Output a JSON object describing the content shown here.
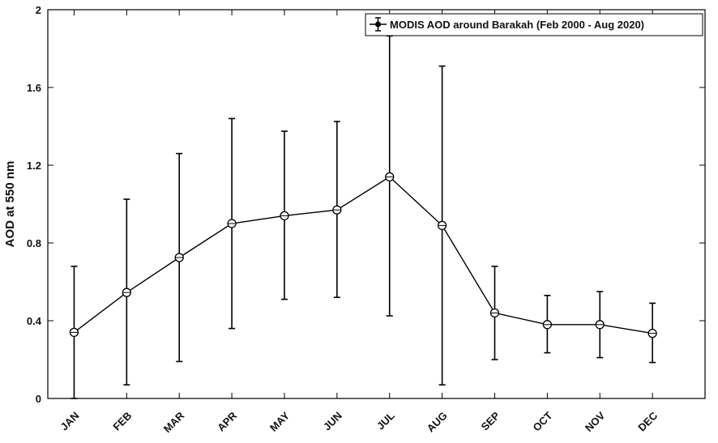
{
  "chart_data": {
    "type": "line",
    "categories": [
      "JAN",
      "FEB",
      "MAR",
      "APR",
      "MAY",
      "JUN",
      "JUL",
      "AUG",
      "SEP",
      "OCT",
      "NOV",
      "DEC"
    ],
    "series": [
      {
        "name": "MODIS AOD around Barakah (Feb 2000 - Aug 2020)",
        "values": [
          0.34,
          0.545,
          0.725,
          0.9,
          0.94,
          0.97,
          1.14,
          0.89,
          0.44,
          0.38,
          0.38,
          0.335
        ],
        "error_upper": [
          0.68,
          1.025,
          1.26,
          1.44,
          1.375,
          1.425,
          1.865,
          1.71,
          0.68,
          0.53,
          0.55,
          0.49
        ],
        "error_lower": [
          0.0,
          0.07,
          0.19,
          0.36,
          0.51,
          0.52,
          0.425,
          0.07,
          0.2,
          0.235,
          0.21,
          0.185
        ],
        "color": "#000000",
        "marker": "open-circle"
      }
    ],
    "xlabel": "",
    "ylabel": "AOD at 550 nm",
    "ylim": [
      0,
      2
    ],
    "yticks": [
      0,
      0.4,
      0.8,
      1.2,
      1.6,
      2
    ],
    "ytick_labels": [
      "0",
      "0.4",
      "0.8",
      "1.2",
      "1.6",
      "2"
    ],
    "grid": false,
    "legend_position": "top-right"
  }
}
